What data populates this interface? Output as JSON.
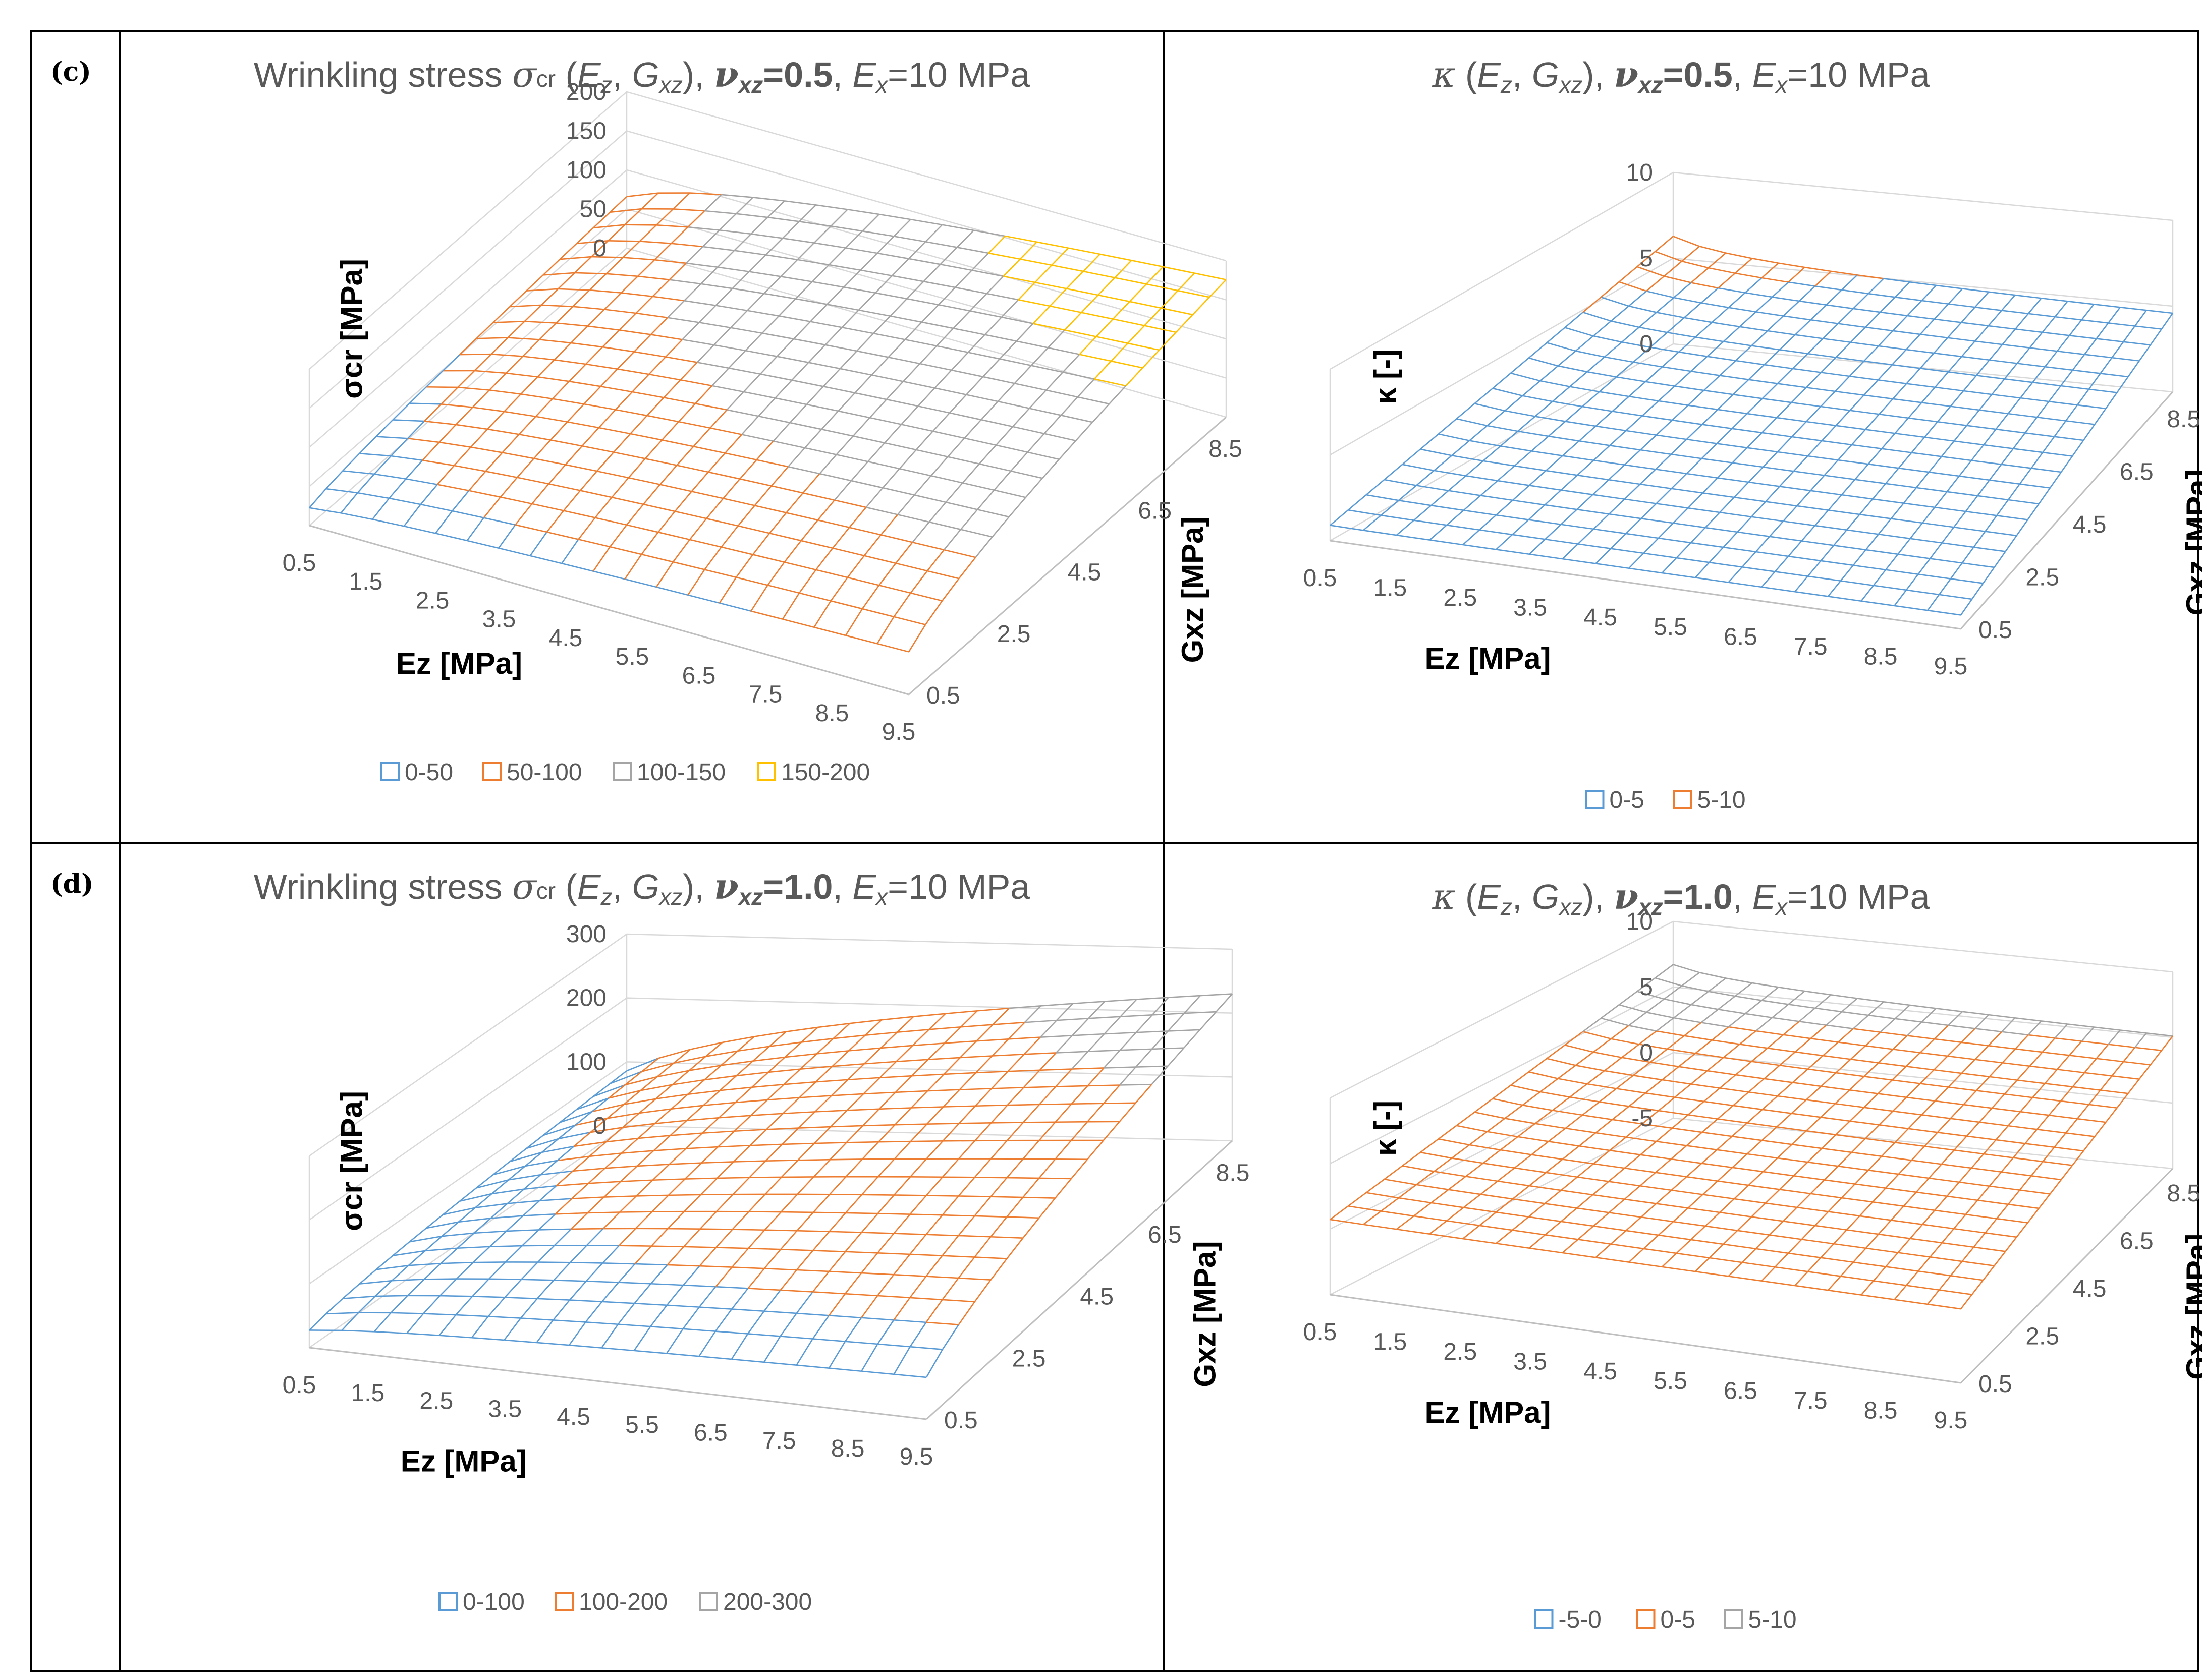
{
  "panels": [
    {
      "label": "(c)",
      "title": {
        "prefix": "Wrinkling stress ",
        "symbol": "σ",
        "symbol_sub": "cr",
        "args": "(E_z, G_xz), ",
        "nu": "ν_xz=0.5",
        "ex": "E_x=10 MPa"
      },
      "chart_data": {
        "type": "surface3d",
        "x_label": "Ez [MPa]",
        "y_label": "Gxz [MPa]",
        "z_label": "σcr [MPa]",
        "x_ticks": [
          "0.5",
          "1.5",
          "2.5",
          "3.5",
          "4.5",
          "5.5",
          "6.5",
          "7.5",
          "8.5",
          "9.5"
        ],
        "y_ticks": [
          "0.5",
          "2.5",
          "4.5",
          "6.5",
          "8.5"
        ],
        "z_ticks": [
          "0",
          "50",
          "100",
          "150",
          "200"
        ],
        "z_range": [
          0,
          200
        ],
        "bands": [
          {
            "name": "0-50",
            "color": "#5b9bd5"
          },
          {
            "name": "50-100",
            "color": "#ed7d31"
          },
          {
            "name": "100-150",
            "color": "#a5a5a5"
          },
          {
            "name": "150-200",
            "color": "#ffc000"
          }
        ],
        "surface_corners": {
          "Ez0.5_G0.5": 25,
          "Ez9.5_G0.5": 55,
          "Ez0.5_G9.5": 75,
          "Ez9.5_G9.5": 200
        }
      }
    },
    {
      "label": "",
      "title": {
        "prefix": "",
        "symbol": "κ",
        "symbol_sub": "",
        "args": " (E_z, G_xz), ",
        "nu": "ν_xz=0.5",
        "ex": "E_x=10 MPa"
      },
      "chart_data": {
        "type": "surface3d",
        "x_label": "Ez [MPa]",
        "y_label": "Gxz [MPa]",
        "z_label": "κ [-]",
        "x_ticks": [
          "0.5",
          "1.5",
          "2.5",
          "3.5",
          "4.5",
          "5.5",
          "6.5",
          "7.5",
          "8.5",
          "9.5"
        ],
        "y_ticks": [
          "0.5",
          "2.5",
          "4.5",
          "6.5",
          "8.5"
        ],
        "z_ticks": [
          "0",
          "5",
          "10"
        ],
        "z_range": [
          0,
          10
        ],
        "bands": [
          {
            "name": "0-5",
            "color": "#5b9bd5"
          },
          {
            "name": "5-10",
            "color": "#ed7d31"
          }
        ],
        "surface_corners": {
          "Ez0.5_G0.5": 2.5,
          "Ez9.5_G0.5": 1.0,
          "Ez0.5_G9.5": 6.0,
          "Ez9.5_G9.5": 5.5
        }
      }
    },
    {
      "label": "(d)",
      "title": {
        "prefix": "Wrinkling stress ",
        "symbol": "σ",
        "symbol_sub": "cr",
        "args": "(E_z, G_xz), ",
        "nu": "ν_xz=1.0",
        "ex": "E_x=10 MPa"
      },
      "chart_data": {
        "type": "surface3d",
        "x_label": "Ez [MPa]",
        "y_label": "Gxz [MPa]",
        "z_label": "σcr [MPa]",
        "x_ticks": [
          "0.5",
          "1.5",
          "2.5",
          "3.5",
          "4.5",
          "5.5",
          "6.5",
          "7.5",
          "8.5",
          "9.5"
        ],
        "y_ticks": [
          "0.5",
          "2.5",
          "4.5",
          "6.5",
          "8.5"
        ],
        "z_ticks": [
          "0",
          "100",
          "200",
          "300"
        ],
        "z_range": [
          0,
          300
        ],
        "bands": [
          {
            "name": "0-100",
            "color": "#5b9bd5"
          },
          {
            "name": "100-200",
            "color": "#ed7d31"
          },
          {
            "name": "200-300",
            "color": "#a5a5a5"
          }
        ],
        "surface_corners": {
          "Ez0.5_G0.5": 30,
          "Ez9.5_G0.5": 60,
          "Ez0.5_G9.5": 110,
          "Ez9.5_G9.5": 290
        }
      }
    },
    {
      "label": "",
      "title": {
        "prefix": "",
        "symbol": "κ",
        "symbol_sub": "",
        "args": " (E_z, G_xz), ",
        "nu": "ν_xz=1.0",
        "ex": "E_x=10 MPa"
      },
      "chart_data": {
        "type": "surface3d",
        "x_label": "Ez [MPa]",
        "y_label": "Gxz [MPa]",
        "z_label": "κ [-]",
        "x_ticks": [
          "0.5",
          "1.5",
          "2.5",
          "3.5",
          "4.5",
          "5.5",
          "6.5",
          "7.5",
          "8.5",
          "9.5"
        ],
        "y_ticks": [
          "0.5",
          "2.5",
          "4.5",
          "6.5",
          "8.5"
        ],
        "z_ticks": [
          "-5",
          "0",
          "5",
          "10"
        ],
        "z_range": [
          -5,
          10
        ],
        "bands": [
          {
            "name": "-5-0",
            "color": "#5b9bd5"
          },
          {
            "name": "0-5",
            "color": "#ed7d31"
          },
          {
            "name": "5-10",
            "color": "#a5a5a5"
          }
        ],
        "surface_corners": {
          "Ez0.5_G0.5": 2.5,
          "Ez9.5_G0.5": 0.5,
          "Ez0.5_G9.5": 6.5,
          "Ez9.5_G9.5": 6.0
        }
      }
    }
  ]
}
